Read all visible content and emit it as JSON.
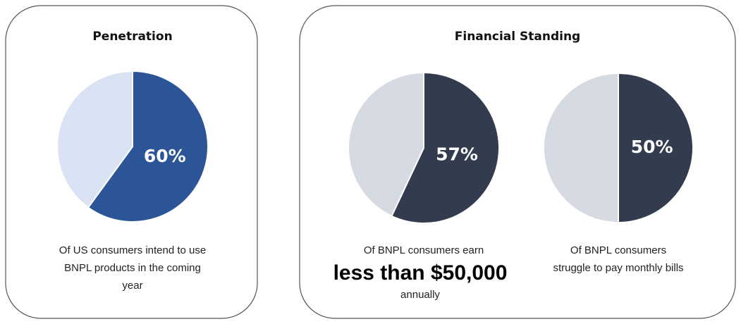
{
  "panels": [
    {
      "title": "Penetration"
    },
    {
      "title": "Financial Standing"
    }
  ],
  "chart_data": [
    {
      "type": "pie",
      "values": [
        60,
        40
      ],
      "value_labels": [
        "60%",
        null
      ],
      "colors": [
        "#2c5597",
        "#dae3f3"
      ],
      "caption": [
        "Of US consumers intend to use",
        "BNPL products in the coming",
        "year"
      ]
    },
    {
      "type": "pie",
      "values": [
        57,
        43
      ],
      "value_labels": [
        "57%",
        null
      ],
      "colors": [
        "#333c4e",
        "#d6dae2"
      ],
      "caption": [
        "Of BNPL consumers earn"
      ],
      "emphasis": "less than $50,000",
      "caption_end": "annually"
    },
    {
      "type": "pie",
      "values": [
        50,
        50
      ],
      "value_labels": [
        "50%",
        null
      ],
      "colors": [
        "#333c4e",
        "#d6dae2"
      ],
      "caption": [
        "Of BNPL consumers",
        "struggle to pay monthly bills"
      ]
    }
  ]
}
